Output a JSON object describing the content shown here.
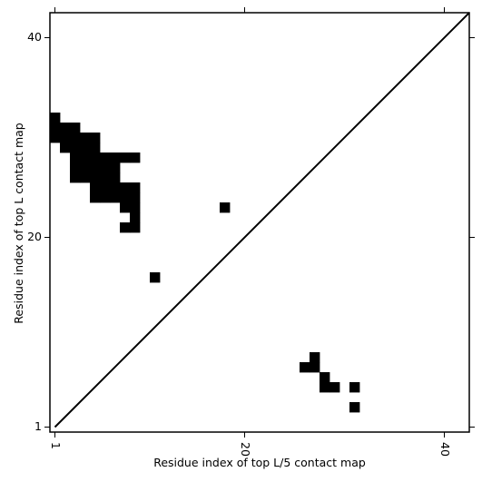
{
  "chart_data": {
    "type": "heatmap",
    "xlabel": "Residue index of top L/5 contact map",
    "ylabel": "Residue index of top L contact map",
    "x_range": [
      0.5,
      42.5
    ],
    "y_range": [
      0.5,
      42.5
    ],
    "x_ticks": [
      {
        "value": 1,
        "label": "1"
      },
      {
        "value": 20,
        "label": "20"
      },
      {
        "value": 40,
        "label": "40"
      }
    ],
    "y_ticks": [
      {
        "value": 1,
        "label": "1"
      },
      {
        "value": 20,
        "label": "20"
      },
      {
        "value": 40,
        "label": "40"
      }
    ],
    "diagonal": true,
    "cell_color": "#000000",
    "top_L_cells": [
      {
        "x": 1,
        "y": 32
      },
      {
        "x": 1,
        "y": 31
      },
      {
        "x": 1,
        "y": 30
      },
      {
        "x": 2,
        "y": 31
      },
      {
        "x": 2,
        "y": 30
      },
      {
        "x": 2,
        "y": 29
      },
      {
        "x": 3,
        "y": 31
      },
      {
        "x": 3,
        "y": 30
      },
      {
        "x": 3,
        "y": 29
      },
      {
        "x": 3,
        "y": 28
      },
      {
        "x": 3,
        "y": 27
      },
      {
        "x": 3,
        "y": 26
      },
      {
        "x": 4,
        "y": 30
      },
      {
        "x": 4,
        "y": 29
      },
      {
        "x": 4,
        "y": 28
      },
      {
        "x": 4,
        "y": 27
      },
      {
        "x": 4,
        "y": 26
      },
      {
        "x": 5,
        "y": 30
      },
      {
        "x": 5,
        "y": 29
      },
      {
        "x": 5,
        "y": 28
      },
      {
        "x": 5,
        "y": 27
      },
      {
        "x": 5,
        "y": 26
      },
      {
        "x": 5,
        "y": 25
      },
      {
        "x": 5,
        "y": 24
      },
      {
        "x": 6,
        "y": 28
      },
      {
        "x": 6,
        "y": 27
      },
      {
        "x": 6,
        "y": 26
      },
      {
        "x": 6,
        "y": 25
      },
      {
        "x": 6,
        "y": 24
      },
      {
        "x": 7,
        "y": 28
      },
      {
        "x": 7,
        "y": 27
      },
      {
        "x": 7,
        "y": 26
      },
      {
        "x": 7,
        "y": 25
      },
      {
        "x": 7,
        "y": 24
      },
      {
        "x": 8,
        "y": 28
      },
      {
        "x": 8,
        "y": 25
      },
      {
        "x": 8,
        "y": 24
      },
      {
        "x": 8,
        "y": 23
      },
      {
        "x": 8,
        "y": 21
      },
      {
        "x": 9,
        "y": 28
      },
      {
        "x": 9,
        "y": 25
      },
      {
        "x": 9,
        "y": 24
      },
      {
        "x": 9,
        "y": 23
      },
      {
        "x": 9,
        "y": 22
      },
      {
        "x": 9,
        "y": 21
      },
      {
        "x": 11,
        "y": 16
      },
      {
        "x": 18,
        "y": 23
      }
    ],
    "top_L5_cells": [
      {
        "x": 26,
        "y": 7
      },
      {
        "x": 27,
        "y": 8
      },
      {
        "x": 27,
        "y": 7
      },
      {
        "x": 28,
        "y": 6
      },
      {
        "x": 28,
        "y": 5
      },
      {
        "x": 29,
        "y": 5
      },
      {
        "x": 31,
        "y": 5
      },
      {
        "x": 31,
        "y": 3
      }
    ]
  }
}
